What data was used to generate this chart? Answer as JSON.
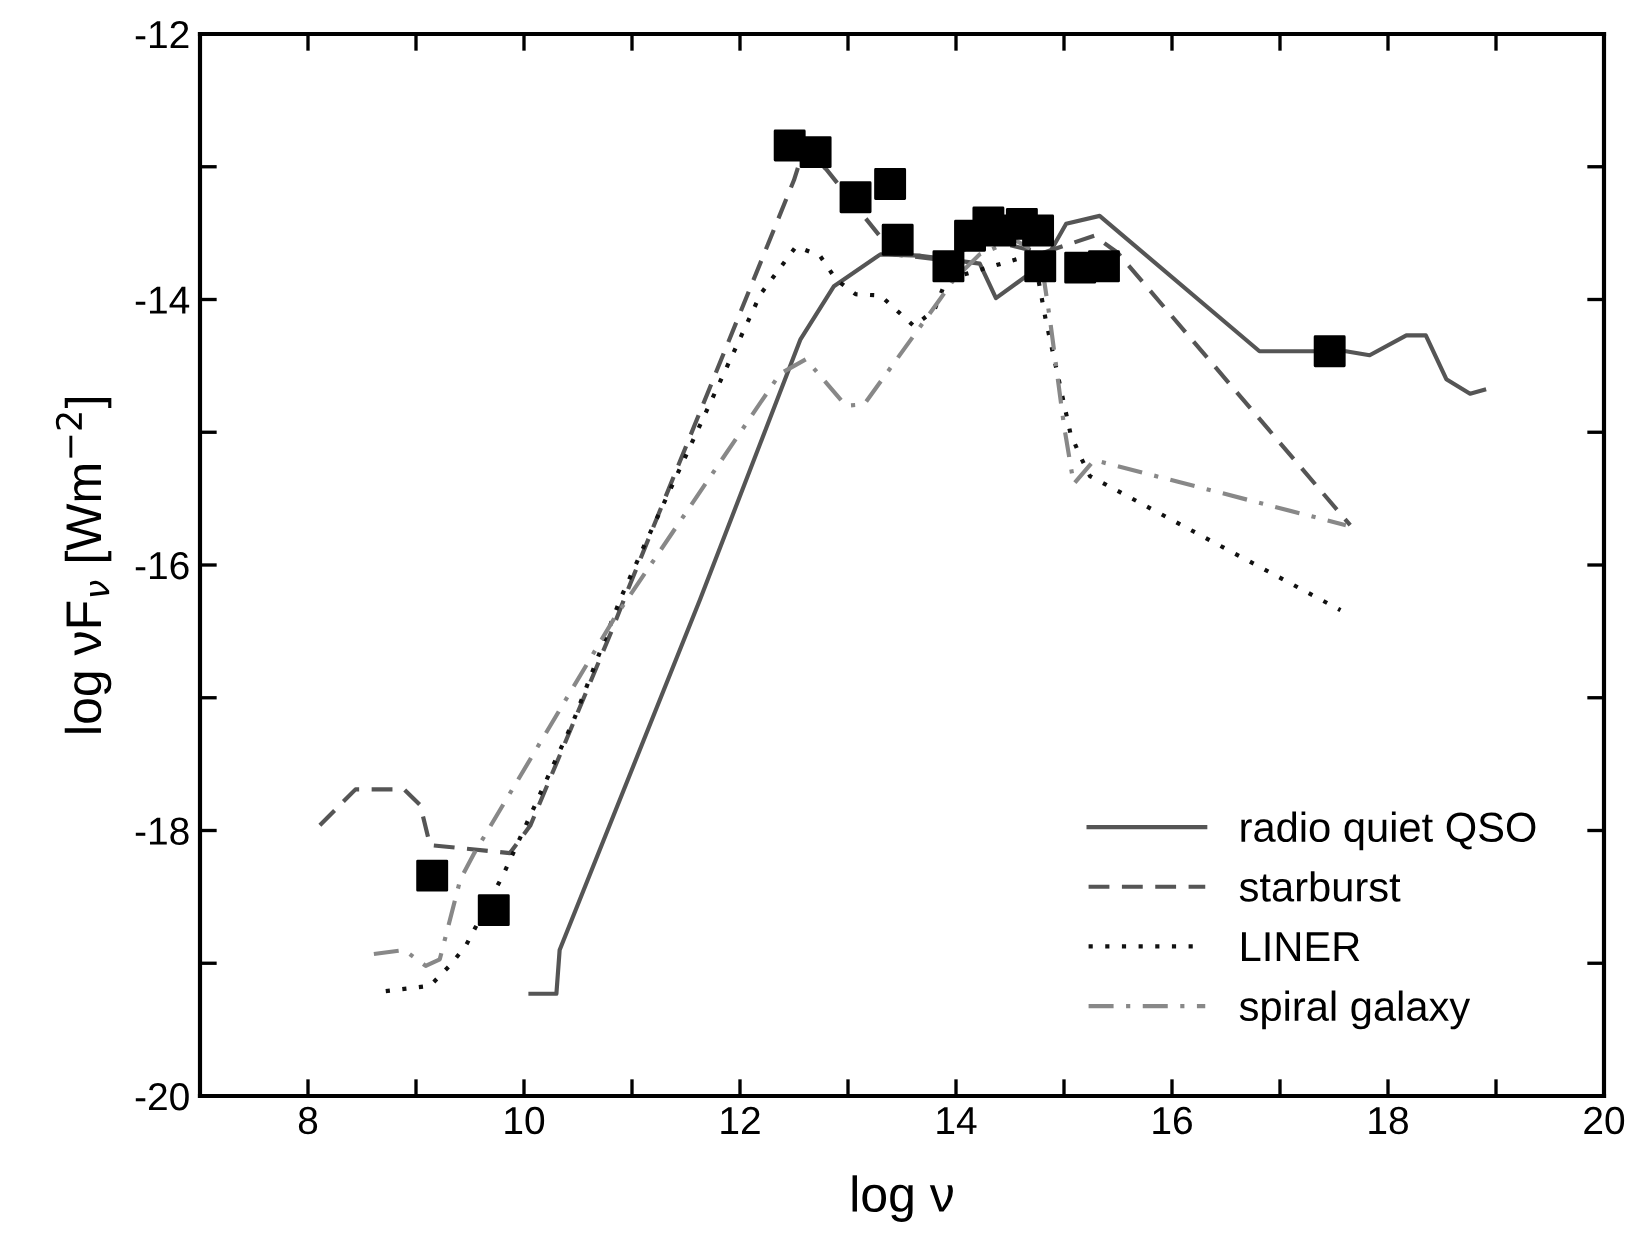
{
  "chart_data": {
    "type": "line",
    "xlabel": "log ν",
    "ylabel": "log νF$_{ν}$ [Wm$^{−2}$]",
    "xlim": [
      7,
      20
    ],
    "ylim": [
      -20,
      -12
    ],
    "xticks": [
      8,
      {
        "value": 9,
        "label": null
      },
      10,
      {
        "value": 11,
        "label": null
      },
      12,
      {
        "value": 13,
        "label": null
      },
      14,
      {
        "value": 15,
        "label": null
      },
      16,
      {
        "value": 17,
        "label": null
      },
      18,
      {
        "value": 19,
        "label": null
      },
      20
    ],
    "yticks": [
      -20,
      {
        "value": -19,
        "label": null
      },
      -18,
      {
        "value": -17,
        "label": null
      },
      -16,
      {
        "value": -15,
        "label": null
      },
      -14,
      {
        "value": -13,
        "label": null
      },
      -12
    ],
    "grid": false,
    "legend": "bottom right",
    "series": [
      {
        "name": "radio quiet QSO",
        "line_style": "solid",
        "color": "#555555",
        "x": [
          10.06,
          10.3,
          10.33,
          11.63,
          12.56,
          12.87,
          13.3,
          13.67,
          14.22,
          14.37,
          14.81,
          15.02,
          15.33,
          16.81,
          17.61,
          17.83,
          18.17,
          18.35,
          18.54,
          18.76,
          18.89
        ],
        "values": [
          -19.23,
          -19.23,
          -18.9,
          -16.26,
          -14.3,
          -13.9,
          -13.66,
          -13.67,
          -13.73,
          -13.99,
          -13.73,
          -13.43,
          -13.37,
          -14.39,
          -14.39,
          -14.42,
          -14.27,
          -14.27,
          -14.6,
          -14.71,
          -14.68
        ]
      },
      {
        "name": "starburst",
        "line_style": "dashed",
        "color": "#555555",
        "x": [
          8.11,
          8.44,
          8.89,
          9.04,
          9.13,
          9.87,
          10.06,
          10.39,
          10.83,
          10.94,
          12.5,
          12.59,
          12.8,
          13.43,
          13.85,
          14.3,
          14.8,
          15.28,
          15.5,
          17.65
        ],
        "values": [
          -17.96,
          -17.69,
          -17.69,
          -17.81,
          -18.11,
          -18.17,
          -17.96,
          -17.32,
          -16.46,
          -16.23,
          -13.1,
          -12.87,
          -13.02,
          -13.66,
          -13.7,
          -13.55,
          -13.65,
          -13.52,
          -13.65,
          -15.7
        ]
      },
      {
        "name": "LINER",
        "line_style": "dotted",
        "color": "#111111",
        "x": [
          8.72,
          9.13,
          9.31,
          9.46,
          9.81,
          10.46,
          10.89,
          11.11,
          12.19,
          12.52,
          12.74,
          12.89,
          13.07,
          13.3,
          13.61,
          13.8,
          13.91,
          14.72,
          14.83,
          15.06,
          15.15,
          15.24,
          17.56
        ],
        "values": [
          -19.21,
          -19.17,
          -19.02,
          -18.87,
          -18.33,
          -17.17,
          -16.26,
          -15.86,
          -13.96,
          -13.6,
          -13.67,
          -13.85,
          -13.96,
          -13.97,
          -14.2,
          -14.08,
          -13.85,
          -13.66,
          -14.15,
          -15.01,
          -15.18,
          -15.33,
          -16.34
        ]
      },
      {
        "name": "spiral galaxy",
        "line_style": "dashdot",
        "color": "#888888",
        "x": [
          8.61,
          8.89,
          9.09,
          9.22,
          9.41,
          9.54,
          10.83,
          12.37,
          12.61,
          12.98,
          13.15,
          13.85,
          13.98,
          14.22,
          14.54,
          14.78,
          14.87,
          15.0,
          15.09,
          15.28,
          17.61
        ],
        "values": [
          -18.93,
          -18.9,
          -19.02,
          -18.97,
          -18.37,
          -18.17,
          -16.41,
          -14.56,
          -14.45,
          -14.8,
          -14.79,
          -14.0,
          -13.85,
          -13.66,
          -13.55,
          -13.66,
          -14.15,
          -14.95,
          -15.39,
          -15.21,
          -15.7
        ]
      },
      {
        "type": "scatter",
        "marker": "square",
        "color": "#000000",
        "x": [
          9.15,
          9.72,
          12.46,
          12.7,
          13.07,
          13.39,
          13.46,
          13.93,
          14.13,
          14.3,
          14.41,
          14.61,
          14.76,
          14.78,
          15.15,
          15.37,
          17.46
        ],
        "values": [
          -18.34,
          -18.6,
          -12.84,
          -12.89,
          -13.23,
          -13.13,
          -13.55,
          -13.75,
          -13.52,
          -13.42,
          -13.48,
          -13.43,
          -13.48,
          -13.75,
          -13.76,
          -13.75,
          -14.39
        ]
      }
    ]
  }
}
